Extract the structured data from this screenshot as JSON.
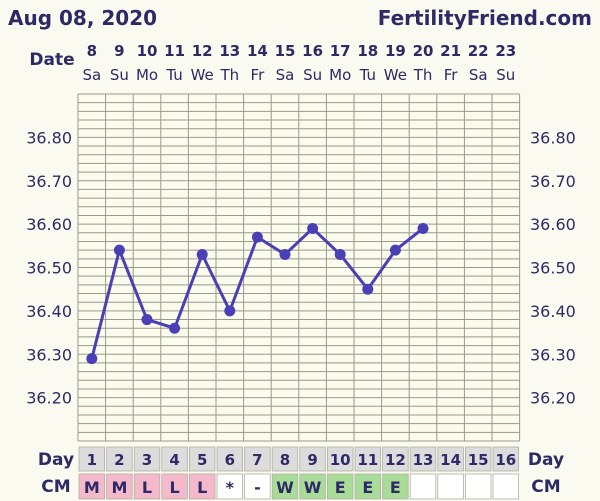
{
  "header": {
    "date_title": "Aug 08, 2020",
    "site": "FertilityFriend.com"
  },
  "labels": {
    "date": "Date",
    "day": "Day",
    "cm": "CM"
  },
  "colors": {
    "line": "#4a3fb5",
    "pink": "#f5b9cc",
    "green": "#a8dc98",
    "grey": "#dcdcdc",
    "white": "#ffffff",
    "plot_bg": "#fbfbee"
  },
  "chart_data": {
    "type": "line",
    "dates": [
      "8",
      "9",
      "10",
      "11",
      "12",
      "13",
      "14",
      "15",
      "16",
      "17",
      "18",
      "19",
      "20",
      "21",
      "22",
      "23"
    ],
    "weekdays": [
      "Sa",
      "Su",
      "Mo",
      "Tu",
      "We",
      "Th",
      "Fr",
      "Sa",
      "Su",
      "Mo",
      "Tu",
      "We",
      "Th",
      "Fr",
      "Sa",
      "Su"
    ],
    "cycle_days": [
      "1",
      "2",
      "3",
      "4",
      "5",
      "6",
      "7",
      "8",
      "9",
      "10",
      "11",
      "12",
      "13",
      "14",
      "15",
      "16"
    ],
    "temperatures": [
      36.29,
      36.54,
      36.38,
      36.36,
      36.53,
      36.4,
      36.57,
      36.53,
      36.59,
      36.53,
      36.45,
      36.54,
      36.59,
      null,
      null,
      null
    ],
    "ylim": [
      36.1,
      36.9
    ],
    "yticks": [
      "36.80",
      "36.70",
      "36.60",
      "36.50",
      "36.40",
      "36.30",
      "36.20"
    ],
    "cervical_mucus": [
      "M",
      "M",
      "L",
      "L",
      "L",
      "*",
      "-",
      "W",
      "W",
      "E",
      "E",
      "E",
      "",
      "",
      "",
      ""
    ],
    "cm_colors": [
      "pink",
      "pink",
      "pink",
      "pink",
      "pink",
      "white",
      "white",
      "green",
      "green",
      "green",
      "green",
      "green",
      "white",
      "white",
      "white",
      "white"
    ],
    "day_colors": [
      "grey",
      "grey",
      "grey",
      "grey",
      "grey",
      "grey",
      "grey",
      "grey",
      "grey",
      "grey",
      "grey",
      "grey",
      "grey",
      "grey",
      "grey",
      "grey"
    ]
  }
}
